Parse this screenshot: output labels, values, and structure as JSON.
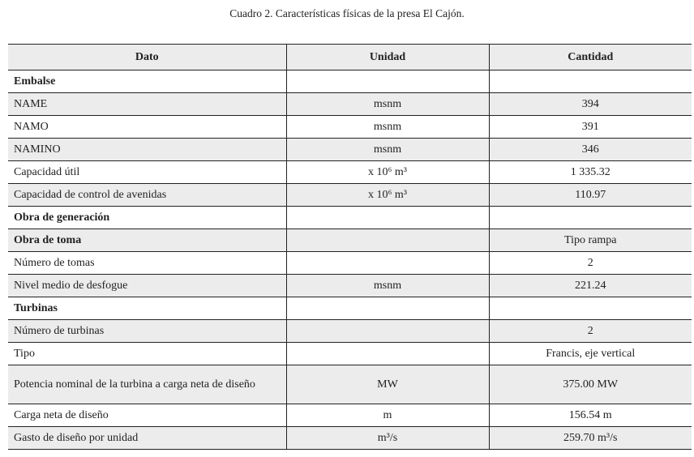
{
  "caption": "Cuadro 2. Características físicas de la presa El Cajón.",
  "headers": [
    "Dato",
    "Unidad",
    "Cantidad"
  ],
  "rows": [
    {
      "dato": "Embalse",
      "unidad": "",
      "cantidad": "",
      "section": true
    },
    {
      "dato": "NAME",
      "unidad": "msnm",
      "cantidad": "394"
    },
    {
      "dato": "NAMO",
      "unidad": "msnm",
      "cantidad": "391"
    },
    {
      "dato": "NAMINO",
      "unidad": "msnm",
      "cantidad": "346"
    },
    {
      "dato": "Capacidad útil",
      "unidad": "x 10⁶ m³",
      "cantidad": "1 335.32"
    },
    {
      "dato": "Capacidad de control de avenidas",
      "unidad": "x 10⁶ m³",
      "cantidad": "110.97"
    },
    {
      "dato": "Obra de generación",
      "unidad": "",
      "cantidad": "",
      "section": true
    },
    {
      "dato": "Obra de toma",
      "unidad": "",
      "cantidad": "Tipo rampa",
      "section": true
    },
    {
      "dato": "Número de tomas",
      "unidad": "",
      "cantidad": "2"
    },
    {
      "dato": "Nivel medio de desfogue",
      "unidad": "msnm",
      "cantidad": "221.24"
    },
    {
      "dato": "Turbinas",
      "unidad": "",
      "cantidad": "",
      "section": true
    },
    {
      "dato": "Número de turbinas",
      "unidad": "",
      "cantidad": "2"
    },
    {
      "dato": "Tipo",
      "unidad": "",
      "cantidad": "Francis, eje vertical"
    },
    {
      "dato": "Potencia nominal de la turbina a carga neta de diseño",
      "unidad": "MW",
      "cantidad": "375.00 MW"
    },
    {
      "dato": "Carga neta de diseño",
      "unidad": "m",
      "cantidad": "156.54 m"
    },
    {
      "dato": "Gasto de diseño por unidad",
      "unidad": "m³/s",
      "cantidad": "259.70 m³/s"
    }
  ],
  "colors": {
    "stripe": "#ececec",
    "border": "#222222"
  }
}
